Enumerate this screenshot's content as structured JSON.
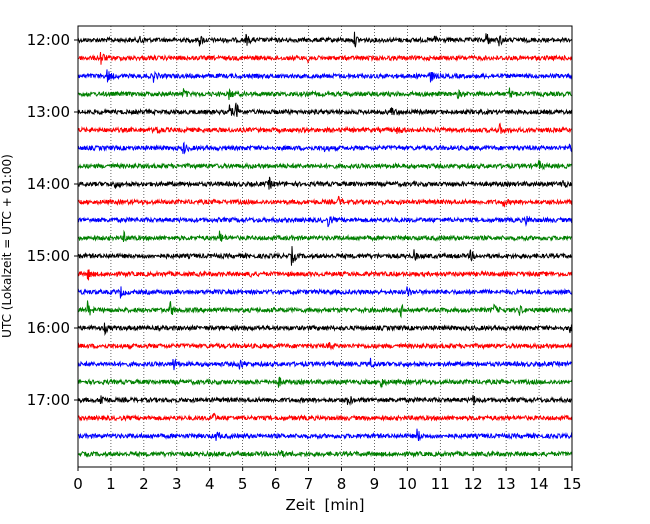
{
  "chart_data": {
    "type": "line",
    "title": "",
    "xlabel": "Zeit  [min]",
    "ylabel": "UTC (Lokalzeit = UTC + 01:00)",
    "xlim": [
      0,
      15
    ],
    "x_ticks": [
      "0",
      "1",
      "2",
      "3",
      "4",
      "5",
      "6",
      "7",
      "8",
      "9",
      "10",
      "11",
      "12",
      "13",
      "14",
      "15"
    ],
    "y_ticks": [
      "12:00",
      "13:00",
      "14:00",
      "15:00",
      "16:00",
      "17:00"
    ],
    "grid": "vertical dotted at each minute",
    "trace_minutes": 15,
    "trace_count": 24,
    "start_time": "12:00",
    "colors": [
      "#000000",
      "#ff0000",
      "#0000ff",
      "#008000"
    ],
    "events": [
      {
        "trace": 0,
        "minute": 1.9,
        "amp": 1.5
      },
      {
        "trace": 0,
        "minute": 3.7,
        "amp": 1.2
      },
      {
        "trace": 0,
        "minute": 5.1,
        "amp": 1.4
      },
      {
        "trace": 0,
        "minute": 8.4,
        "amp": 1.6
      },
      {
        "trace": 0,
        "minute": 10.8,
        "amp": 1.4
      },
      {
        "trace": 0,
        "minute": 12.4,
        "amp": 1.8
      },
      {
        "trace": 0,
        "minute": 12.8,
        "amp": 1.3
      },
      {
        "trace": 1,
        "minute": 0.7,
        "amp": 1.8
      },
      {
        "trace": 1,
        "minute": 7.0,
        "amp": 1.2
      },
      {
        "trace": 2,
        "minute": 0.9,
        "amp": 1.6
      },
      {
        "trace": 2,
        "minute": 2.3,
        "amp": 1.2
      },
      {
        "trace": 2,
        "minute": 10.7,
        "amp": 1.6
      },
      {
        "trace": 3,
        "minute": 3.2,
        "amp": 1.3
      },
      {
        "trace": 3,
        "minute": 4.6,
        "amp": 1.2
      },
      {
        "trace": 3,
        "minute": 11.5,
        "amp": 1.2
      },
      {
        "trace": 3,
        "minute": 13.1,
        "amp": 1.3
      },
      {
        "trace": 4,
        "minute": 4.8,
        "amp": 2.2
      },
      {
        "trace": 4,
        "minute": 4.6,
        "amp": 1.5
      },
      {
        "trace": 4,
        "minute": 9.5,
        "amp": 1.2
      },
      {
        "trace": 5,
        "minute": 2.4,
        "amp": 1.2
      },
      {
        "trace": 5,
        "minute": 9.7,
        "amp": 1.2
      },
      {
        "trace": 5,
        "minute": 12.8,
        "amp": 1.3
      },
      {
        "trace": 6,
        "minute": 3.2,
        "amp": 1.5
      },
      {
        "trace": 6,
        "minute": 7.5,
        "amp": 1.1
      },
      {
        "trace": 6,
        "minute": 14.9,
        "amp": 1.2
      },
      {
        "trace": 7,
        "minute": 14.0,
        "amp": 1.1
      },
      {
        "trace": 8,
        "minute": 1.1,
        "amp": 1.3
      },
      {
        "trace": 8,
        "minute": 5.8,
        "amp": 1.5
      },
      {
        "trace": 8,
        "minute": 14.7,
        "amp": 1.3
      },
      {
        "trace": 9,
        "minute": 7.9,
        "amp": 1.4
      },
      {
        "trace": 9,
        "minute": 12.9,
        "amp": 1.3
      },
      {
        "trace": 10,
        "minute": 7.6,
        "amp": 1.3
      },
      {
        "trace": 10,
        "minute": 13.6,
        "amp": 1.2
      },
      {
        "trace": 11,
        "minute": 4.3,
        "amp": 1.5
      },
      {
        "trace": 11,
        "minute": 1.4,
        "amp": 1.1
      },
      {
        "trace": 12,
        "minute": 6.5,
        "amp": 2.0
      },
      {
        "trace": 12,
        "minute": 11.9,
        "amp": 1.4
      },
      {
        "trace": 12,
        "minute": 10.2,
        "amp": 1.2
      },
      {
        "trace": 13,
        "minute": 0.3,
        "amp": 1.4
      },
      {
        "trace": 13,
        "minute": 5.2,
        "amp": 1.1
      },
      {
        "trace": 14,
        "minute": 1.3,
        "amp": 1.2
      },
      {
        "trace": 14,
        "minute": 10.0,
        "amp": 1.3
      },
      {
        "trace": 15,
        "minute": 0.3,
        "amp": 1.9
      },
      {
        "trace": 15,
        "minute": 2.8,
        "amp": 2.2
      },
      {
        "trace": 15,
        "minute": 9.8,
        "amp": 1.4
      },
      {
        "trace": 15,
        "minute": 12.6,
        "amp": 1.8
      },
      {
        "trace": 15,
        "minute": 13.4,
        "amp": 1.2
      },
      {
        "trace": 16,
        "minute": 0.8,
        "amp": 1.3
      },
      {
        "trace": 16,
        "minute": 14.9,
        "amp": 1.3
      },
      {
        "trace": 17,
        "minute": 7.6,
        "amp": 1.3
      },
      {
        "trace": 18,
        "minute": 2.9,
        "amp": 1.6
      },
      {
        "trace": 18,
        "minute": 4.9,
        "amp": 1.5
      },
      {
        "trace": 18,
        "minute": 8.9,
        "amp": 1.2
      },
      {
        "trace": 19,
        "minute": 9.2,
        "amp": 1.4
      },
      {
        "trace": 19,
        "minute": 6.1,
        "amp": 1.1
      },
      {
        "trace": 20,
        "minute": 0.7,
        "amp": 1.5
      },
      {
        "trace": 20,
        "minute": 8.2,
        "amp": 1.7
      },
      {
        "trace": 20,
        "minute": 12.0,
        "amp": 1.2
      },
      {
        "trace": 21,
        "minute": 4.1,
        "amp": 1.1
      },
      {
        "trace": 22,
        "minute": 10.3,
        "amp": 1.8
      },
      {
        "trace": 22,
        "minute": 4.2,
        "amp": 1.1
      },
      {
        "trace": 23,
        "minute": 6.1,
        "amp": 1.3
      }
    ]
  }
}
